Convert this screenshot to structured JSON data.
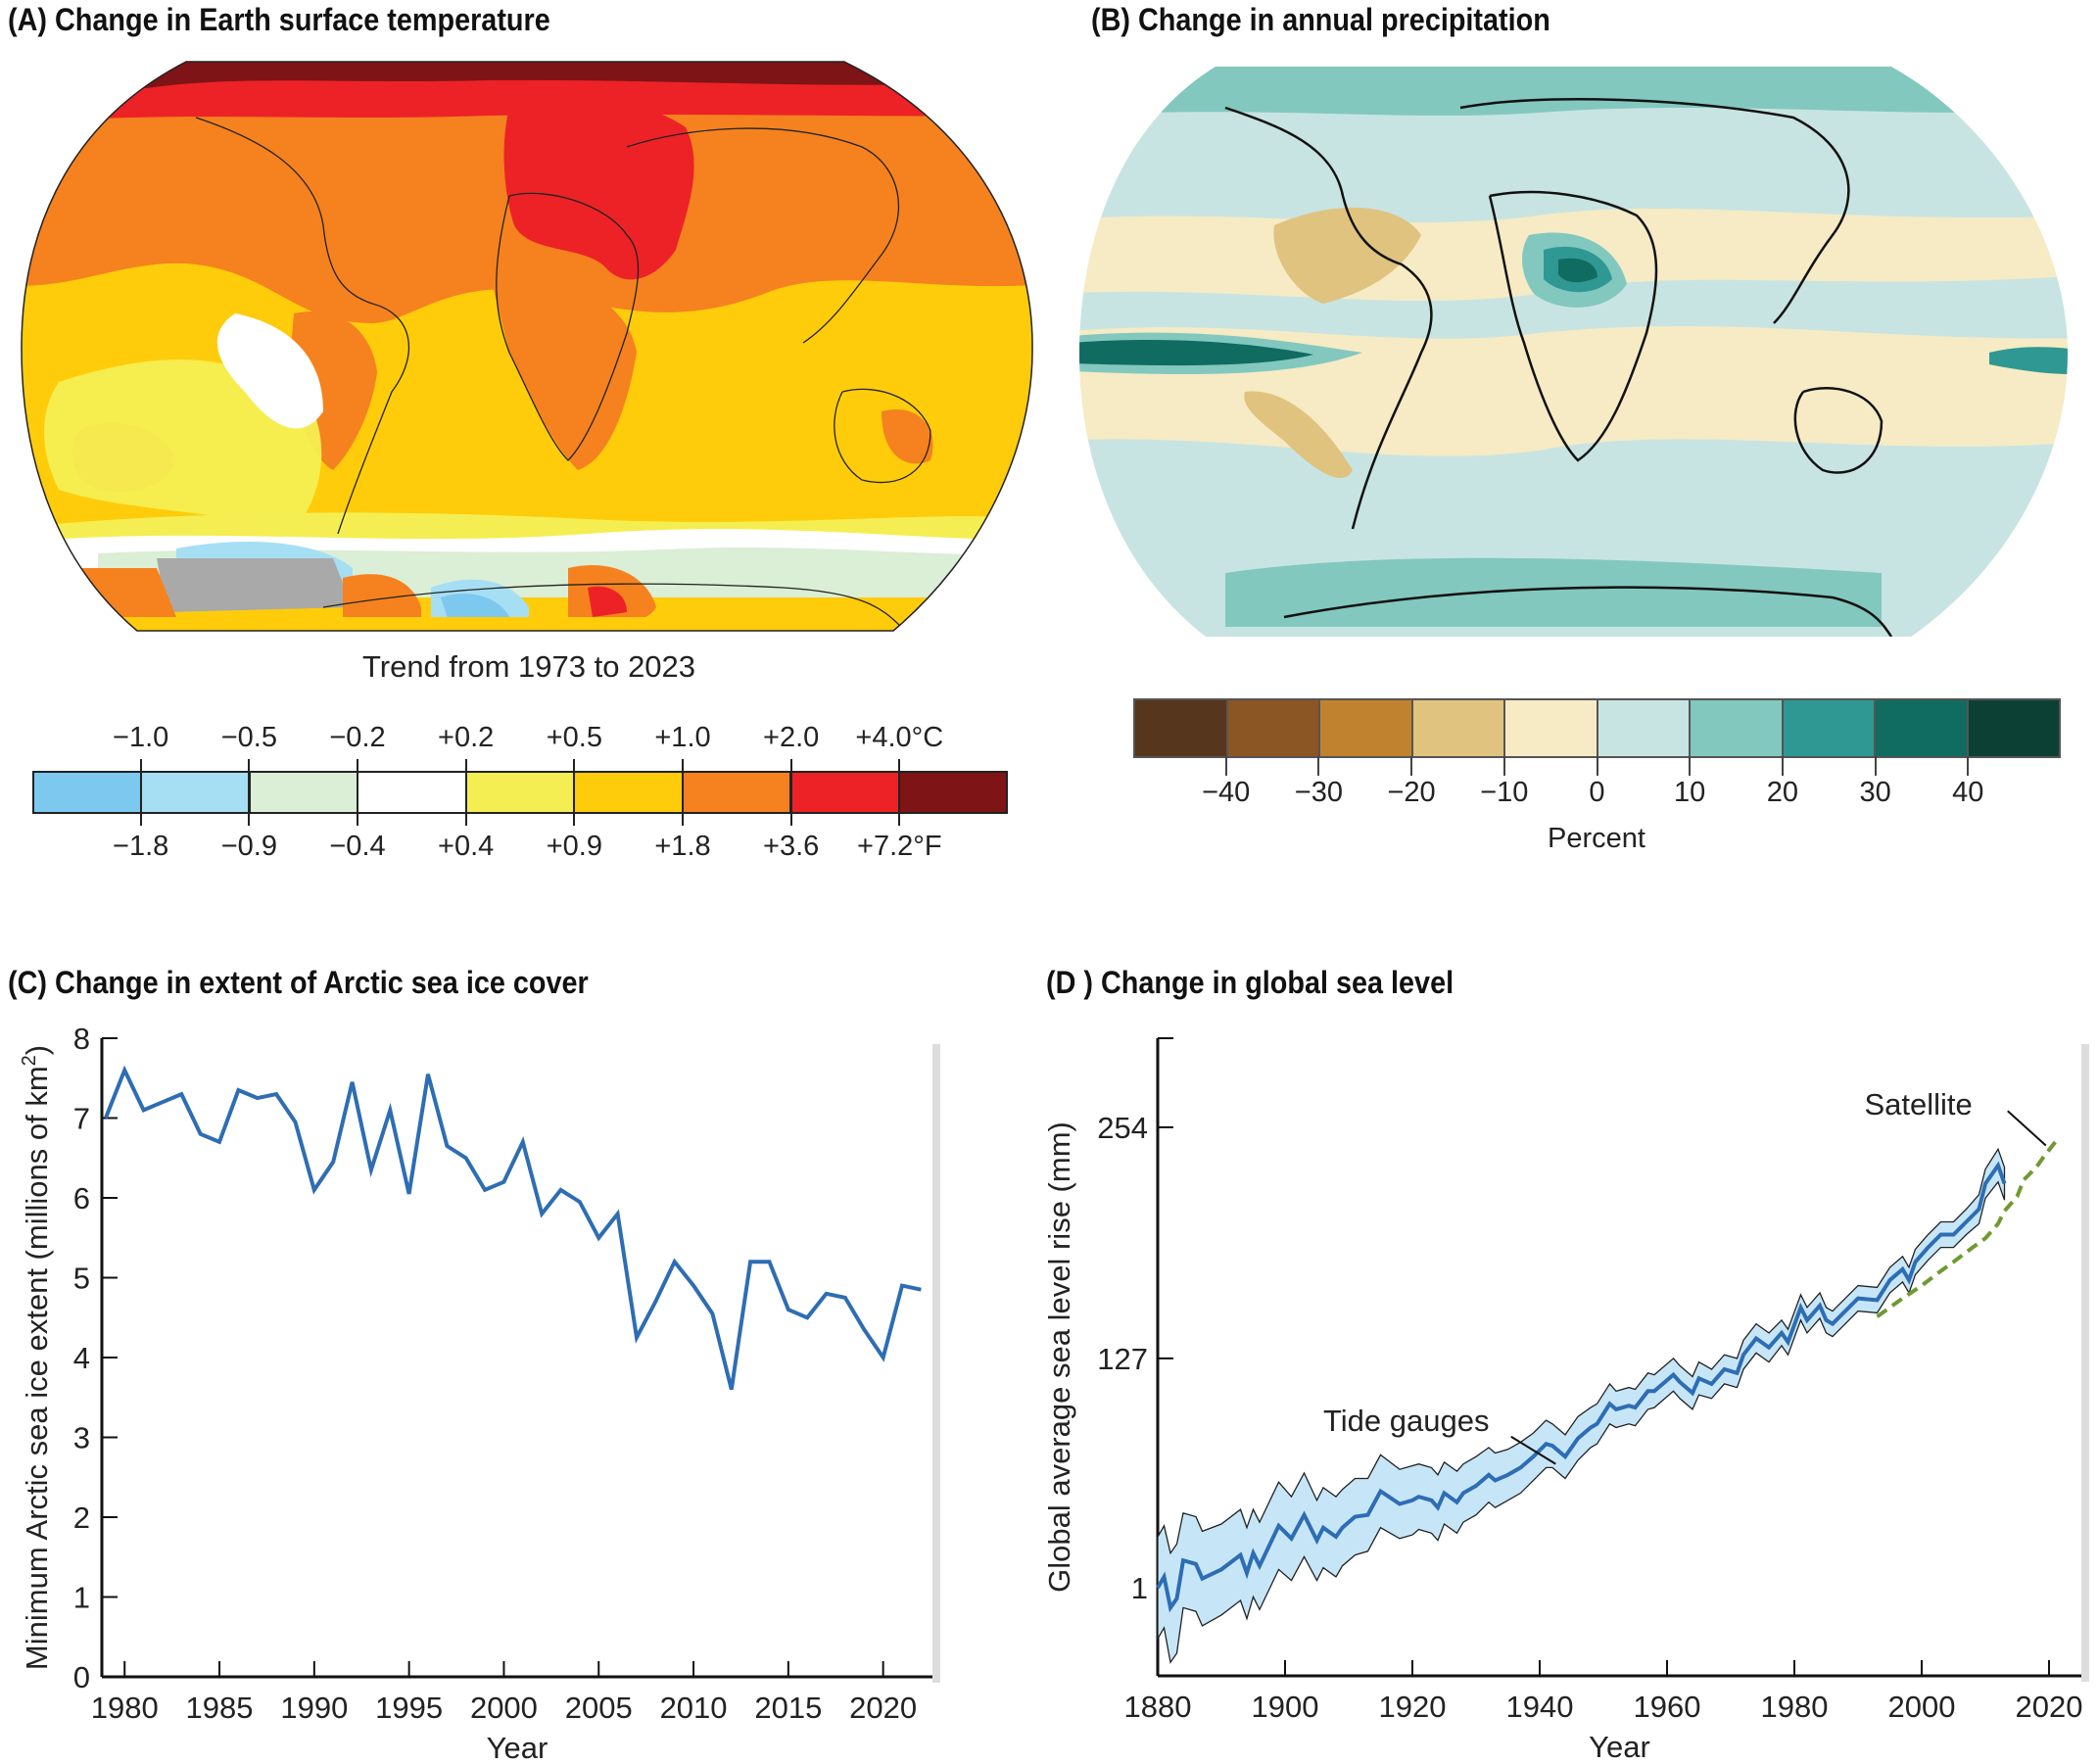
{
  "panels": {
    "a": {
      "title": "(A)  Change in Earth surface temperature",
      "subtitle": "Trend from 1973 to 2023"
    },
    "b": {
      "title": "(B)  Change in annual precipitation"
    },
    "c": {
      "title": "(C)  Change in extent of Arctic sea ice cover"
    },
    "d": {
      "title": "(D )  Change in global sea level"
    }
  },
  "legend_temperature": {
    "colors": [
      "#7cc8ef",
      "#a6def4",
      "#dbeed6",
      "#ffffff",
      "#f5ee52",
      "#fecc0a",
      "#f5821f",
      "#ec2227",
      "#7e1416"
    ],
    "celsius_labels": [
      "−1.0",
      "−0.5",
      "−0.2",
      "+0.2",
      "+0.5",
      "+1.0",
      "+2.0",
      "+4.0°C"
    ],
    "fahrenheit_labels": [
      "−1.8",
      "−0.9",
      "−0.4",
      "+0.4",
      "+0.9",
      "+1.8",
      "+3.6",
      "+7.2°F"
    ]
  },
  "legend_precipitation": {
    "colors": [
      "#56361c",
      "#8b5524",
      "#c0822e",
      "#e0c37f",
      "#f6ebc4",
      "#c8e4e2",
      "#82c8bf",
      "#2f9892",
      "#106b61",
      "#0c4035"
    ],
    "tick_labels": [
      "−40",
      "−30",
      "−20",
      "−10",
      "0",
      "10",
      "20",
      "30",
      "40"
    ],
    "unit_label": "Percent"
  },
  "chart_data": [
    {
      "type": "map",
      "title": "Change in Earth surface temperature",
      "subtitle": "Trend from 1973 to 2023"
    },
    {
      "type": "map",
      "title": "Change in annual precipitation",
      "legend_unit": "Percent"
    },
    {
      "type": "line",
      "title": "Change in extent of Arctic sea ice cover",
      "xlabel": "Year",
      "ylabel": "Minimum Arctic sea ice extent (millions of km2)",
      "ylabel_main": "Minimum Arctic sea ice extent (millions of km",
      "ylabel_sup": "2",
      "ylabel_end": ")",
      "xlim": [
        1978.8,
        2022.6
      ],
      "ylim": [
        0,
        8
      ],
      "xticks": [
        1980,
        1985,
        1990,
        1995,
        2000,
        2005,
        2010,
        2015,
        2020
      ],
      "xtick_labels": [
        "1980",
        "1985",
        "1990",
        "1995",
        "2000",
        "2005",
        "2010",
        "2015",
        "2020"
      ],
      "yticks": [
        0,
        1,
        2,
        3,
        4,
        5,
        6,
        7,
        8
      ],
      "ytick_labels": [
        "0",
        "1",
        "2",
        "3",
        "4",
        "5",
        "6",
        "7",
        "8"
      ],
      "color": "#2e6db4",
      "x": [
        1979,
        1980,
        1981,
        1982,
        1983,
        1984,
        1985,
        1986,
        1987,
        1988,
        1989,
        1990,
        1991,
        1992,
        1993,
        1994,
        1995,
        1996,
        1997,
        1998,
        1999,
        2000,
        2001,
        2002,
        2003,
        2004,
        2005,
        2006,
        2007,
        2008,
        2009,
        2010,
        2011,
        2012,
        2013,
        2014,
        2015,
        2016,
        2017,
        2018,
        2019,
        2020,
        2021,
        2022
      ],
      "y": [
        7.0,
        7.6,
        7.1,
        7.2,
        7.3,
        6.8,
        6.7,
        7.35,
        7.25,
        7.3,
        6.95,
        6.1,
        6.45,
        7.45,
        6.35,
        7.1,
        6.05,
        7.55,
        6.65,
        6.5,
        6.1,
        6.2,
        6.7,
        5.8,
        6.1,
        5.95,
        5.5,
        5.8,
        4.25,
        4.7,
        5.2,
        4.9,
        4.55,
        3.6,
        5.2,
        5.2,
        4.6,
        4.5,
        4.8,
        4.75,
        4.35,
        4.0,
        4.9,
        4.85
      ]
    },
    {
      "type": "line",
      "title": "Change in global sea level",
      "xlabel": "Year",
      "ylabel": "Global average sea level rise (mm)",
      "xlim": [
        1880,
        2024
      ],
      "ylim": [
        -48,
        303
      ],
      "xticks": [
        1880,
        1900,
        1920,
        1940,
        1960,
        1980,
        2000,
        2020
      ],
      "xtick_labels": [
        "1880",
        "1900",
        "1920",
        "1940",
        "1960",
        "1980",
        "2000",
        "2020"
      ],
      "yticks": [
        1,
        127,
        254
      ],
      "ytick_labels": [
        "1",
        "127",
        "254"
      ],
      "annotations": [
        "Tide gauges",
        "Satellite"
      ],
      "series": [
        {
          "name": "Tide gauges",
          "color": "#2e6db4",
          "band_color": "#c6e6f8",
          "x": [
            1880,
            1881,
            1882,
            1883,
            1884,
            1886,
            1887,
            1890,
            1893,
            1894,
            1895,
            1896,
            1899,
            1901,
            1903,
            1905,
            1906,
            1908,
            1909,
            1911,
            1913,
            1915,
            1918,
            1920,
            1921,
            1923,
            1924,
            1925,
            1927,
            1928,
            1930,
            1932,
            1933,
            1935,
            1937,
            1939,
            1941,
            1942,
            1944,
            1946,
            1948,
            1949,
            1951,
            1952,
            1954,
            1955,
            1957,
            1958,
            1961,
            1962,
            1964,
            1965,
            1967,
            1969,
            1971,
            1972,
            1974,
            1976,
            1978,
            1979,
            1981,
            1982,
            1984,
            1985,
            1986,
            1988,
            1990,
            1993,
            1995,
            1997,
            1998,
            1999,
            2001,
            2003,
            2005,
            2007,
            2009,
            2010,
            2012,
            2013
          ],
          "y": [
            1,
            7,
            -10,
            -5,
            16,
            14,
            6,
            11,
            19,
            9,
            20,
            13,
            35,
            28,
            41,
            27,
            34,
            29,
            34,
            40,
            41,
            54,
            47,
            49,
            51,
            49,
            45,
            53,
            48,
            53,
            57,
            63,
            60,
            63,
            67,
            73,
            80,
            79,
            73,
            83,
            89,
            91,
            102,
            99,
            101,
            100,
            109,
            109,
            118,
            114,
            108,
            116,
            113,
            121,
            119,
            129,
            138,
            133,
            141,
            136,
            155,
            148,
            156,
            148,
            146,
            153,
            160,
            159,
            170,
            176,
            170,
            180,
            188,
            195,
            195,
            202,
            209,
            223,
            233,
            223
          ],
          "uncertainty": [
            28,
            28,
            30,
            30,
            26,
            26,
            26,
            25,
            25,
            25,
            24,
            24,
            24,
            23,
            23,
            22,
            22,
            22,
            21,
            21,
            20,
            20,
            19,
            19,
            18,
            18,
            18,
            17,
            17,
            16,
            16,
            15,
            15,
            14,
            14,
            13,
            13,
            12,
            12,
            12,
            11,
            11,
            11,
            10,
            10,
            10,
            10,
            9,
            9,
            9,
            9,
            9,
            8,
            8,
            8,
            8,
            8,
            8,
            7,
            7,
            7,
            7,
            7,
            7,
            7,
            7,
            7,
            7,
            7,
            7,
            7,
            7,
            7,
            7,
            7,
            7,
            8,
            8,
            9,
            9
          ]
        },
        {
          "name": "Satellite",
          "color": "#6f9a32",
          "style": "dashed",
          "x": [
            1993,
            1997,
            2000,
            2003,
            2005,
            2008,
            2010,
            2012,
            2013,
            2015,
            2016,
            2018,
            2019,
            2021
          ],
          "y": [
            150,
            160,
            167,
            175,
            180,
            188,
            193,
            201,
            208,
            216,
            225,
            232,
            237,
            246
          ]
        }
      ]
    }
  ]
}
